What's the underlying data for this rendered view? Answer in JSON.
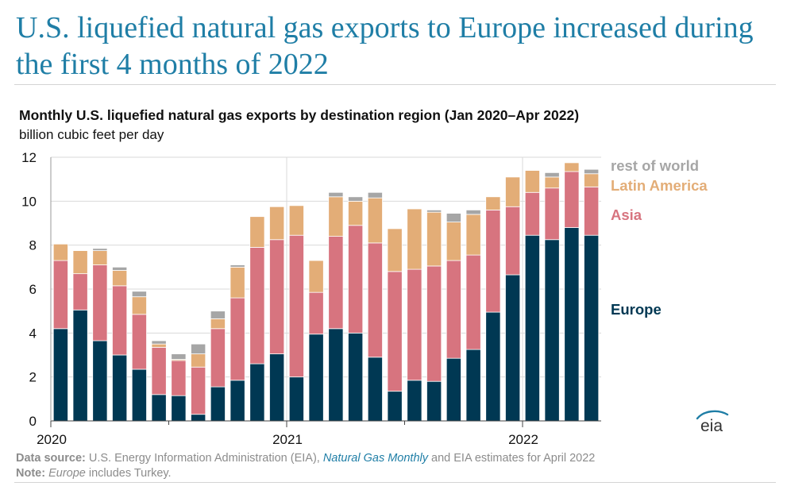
{
  "headline": "U.S. liquefied natural gas exports to Europe increased during the first 4 months of 2022",
  "logo_text": "eia",
  "footer": {
    "source_label": "Data source:",
    "source_text_1": "U.S. Energy Information Administration (EIA),",
    "source_link": "Natural Gas Monthly",
    "source_text_2": "and EIA estimates for April 2022",
    "note_label": "Note:",
    "note_italic": "Europe",
    "note_text": "includes Turkey."
  },
  "colors": {
    "europe": "#003853",
    "asia": "#d7747f",
    "latin_america": "#e3ad77",
    "rest_of_world": "#a6a6a6",
    "headline": "#1f7ea6"
  },
  "chart_data": {
    "type": "bar",
    "stacked": true,
    "title": "Monthly U.S. liquefied natural gas exports by destination region (Jan 2020–Apr 2022)",
    "ylabel": "billion cubic feet per day",
    "ylim": [
      0,
      12
    ],
    "yticks": [
      "0",
      "2",
      "4",
      "6",
      "8",
      "10",
      "12"
    ],
    "xtick_labels": [
      "2020",
      "2021",
      "2022"
    ],
    "xtick_month_index": [
      0,
      12,
      24
    ],
    "grid": true,
    "legend_position": "right-inline",
    "categories": [
      "Jan 2020",
      "Feb 2020",
      "Mar 2020",
      "Apr 2020",
      "May 2020",
      "Jun 2020",
      "Jul 2020",
      "Aug 2020",
      "Sep 2020",
      "Oct 2020",
      "Nov 2020",
      "Dec 2020",
      "Jan 2021",
      "Feb 2021",
      "Mar 2021",
      "Apr 2021",
      "May 2021",
      "Jun 2021",
      "Jul 2021",
      "Aug 2021",
      "Sep 2021",
      "Oct 2021",
      "Nov 2021",
      "Dec 2021",
      "Jan 2022",
      "Feb 2022",
      "Mar 2022",
      "Apr 2022"
    ],
    "series": [
      {
        "name": "Europe",
        "color": "#003853",
        "values": [
          4.2,
          5.05,
          3.65,
          3.0,
          2.35,
          1.2,
          1.15,
          0.3,
          1.55,
          1.85,
          2.6,
          3.05,
          2.0,
          3.95,
          4.2,
          4.0,
          2.9,
          1.35,
          1.85,
          1.8,
          2.85,
          3.25,
          4.95,
          6.65,
          8.45,
          8.25,
          8.8,
          8.45
        ]
      },
      {
        "name": "Asia",
        "color": "#d7747f",
        "values": [
          3.1,
          1.65,
          3.45,
          3.15,
          2.5,
          2.15,
          1.6,
          2.15,
          2.65,
          3.75,
          5.3,
          5.2,
          6.45,
          1.9,
          4.2,
          4.9,
          5.2,
          5.45,
          5.05,
          5.25,
          4.45,
          4.3,
          4.65,
          3.1,
          1.95,
          2.35,
          2.55,
          2.2
        ]
      },
      {
        "name": "Latin America",
        "color": "#e3ad77",
        "values": [
          0.75,
          1.05,
          0.65,
          0.7,
          0.8,
          0.15,
          0.05,
          0.6,
          0.45,
          1.4,
          1.4,
          1.5,
          1.35,
          1.45,
          1.8,
          1.1,
          2.05,
          1.95,
          2.75,
          2.45,
          1.75,
          1.85,
          0.6,
          1.35,
          1.0,
          0.5,
          0.4,
          0.6
        ]
      },
      {
        "name": "rest of world",
        "color": "#a6a6a6",
        "values": [
          0,
          0,
          0.1,
          0.15,
          0.25,
          0.15,
          0.25,
          0.45,
          0.35,
          0.1,
          0,
          0,
          0,
          0,
          0.2,
          0.2,
          0.25,
          0,
          0,
          0.1,
          0.4,
          0.2,
          0,
          0,
          0,
          0.2,
          0,
          0.2
        ]
      }
    ],
    "legend": [
      {
        "label": "rest of world",
        "color": "#a6a6a6"
      },
      {
        "label": "Latin America",
        "color": "#e3ad77"
      },
      {
        "label": "Asia",
        "color": "#d7747f"
      },
      {
        "label": "Europe",
        "color": "#003853"
      }
    ]
  }
}
